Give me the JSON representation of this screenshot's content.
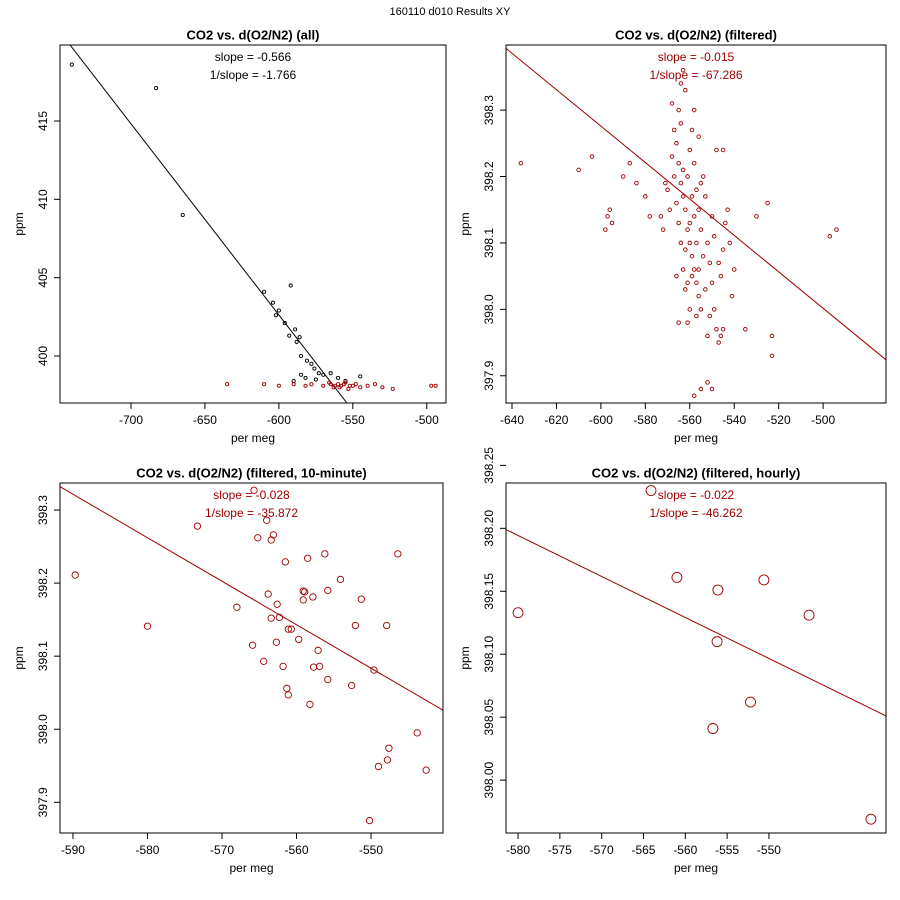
{
  "title": "160110   d010   Results XY",
  "chart_data": [
    {
      "type": "scatter",
      "title": "CO2 vs. d(O2/N2) (all)",
      "x_label": "per meg",
      "y_label": "ppm",
      "annotations": [
        "slope = -0.566",
        "1/slope = -1.766"
      ],
      "annotation_color": "#000000",
      "xlim": [
        -748,
        -487
      ],
      "ylim": [
        397,
        419.85
      ],
      "xticks": [
        -700,
        -650,
        -600,
        -550,
        -500
      ],
      "yticks": [
        400,
        405,
        410,
        415
      ],
      "fit_line": {
        "color": "#000000",
        "x": [
          -741.2,
          -554
        ],
        "y": [
          419.85,
          397
        ]
      },
      "series": [
        {
          "color": "#000000",
          "x": [
            -740,
            -683,
            -665,
            -610,
            -604,
            -602,
            -600,
            -592,
            -596,
            -593,
            -589,
            -588,
            -586,
            -585,
            -581,
            -578,
            -576,
            -573,
            -570,
            -585,
            -582,
            -575,
            -560,
            -555,
            -545,
            -565,
            -590
          ],
          "values": [
            418.6,
            417.1,
            409.0,
            404.1,
            403.4,
            402.6,
            402.9,
            404.5,
            402.1,
            401.3,
            401.7,
            400.9,
            401.2,
            400.0,
            399.7,
            399.5,
            399.2,
            398.9,
            398.8,
            398.8,
            398.6,
            398.5,
            398.6,
            398.4,
            398.7,
            398.9,
            398.4
          ]
        },
        {
          "color": "#a00000",
          "x": [
            -635,
            -610,
            -600,
            -590,
            -582,
            -578,
            -570,
            -566,
            -563,
            -560,
            -558,
            -556,
            -553,
            -550,
            -548,
            -545,
            -540,
            -535,
            -530,
            -523,
            -497,
            -494,
            -565,
            -562,
            -559,
            -555,
            -552
          ],
          "values": [
            398.2,
            398.2,
            398.1,
            398.2,
            398.1,
            398.2,
            398.1,
            398.3,
            398.0,
            398.2,
            398.1,
            398.2,
            397.9,
            398.1,
            398.2,
            398.0,
            398.1,
            398.2,
            398.0,
            397.9,
            398.1,
            398.1,
            398.2,
            398.1,
            398.0,
            398.3,
            398.1
          ]
        }
      ]
    },
    {
      "type": "scatter",
      "title": "CO2 vs. d(O2/N2) (filtered)",
      "x_label": "per meg",
      "y_label": "ppm",
      "annotations": [
        "slope = -0.015",
        "1/slope = -67.286"
      ],
      "annotation_color": "#a00000",
      "xlim": [
        -642.7,
        -471.7
      ],
      "ylim": [
        397.859,
        398.398
      ],
      "xticks": [
        -640,
        -620,
        -600,
        -580,
        -560,
        -540,
        -520,
        -500
      ],
      "yticks": [
        397.9,
        {
          "value": 398,
          "label": "398.0"
        },
        398.1,
        398.2,
        398.3
      ],
      "fit_line": {
        "color": "#a00000",
        "x": [
          -642.7,
          -471.7
        ],
        "y": [
          398.393,
          397.924
        ]
      },
      "series": [
        {
          "color": "#a00000",
          "x": [
            -636,
            -610,
            -604,
            -597,
            -596,
            -595,
            -598,
            -590,
            -587,
            -584,
            -580,
            -578,
            -525,
            -530,
            -523,
            -523,
            -497,
            -494,
            -535,
            -545,
            -555,
            -552,
            -550,
            -558,
            -568,
            -567,
            -566,
            -565,
            -564,
            -563,
            -562,
            -561,
            -560,
            -559,
            -558,
            -557,
            -556,
            -555,
            -566,
            -565,
            -564,
            -563,
            -562,
            -561,
            -560,
            -559,
            -558,
            -557,
            -556,
            -555,
            -554,
            -553,
            -552,
            -551,
            -550,
            -549,
            -548,
            -547,
            -546,
            -545,
            -544,
            -543,
            -542,
            -541,
            -540,
            -567,
            -568,
            -569,
            -570,
            -571,
            -572,
            -573,
            -566,
            -565,
            -564,
            -563,
            -562,
            -561,
            -560,
            -559,
            -558,
            -557,
            -556,
            -555,
            -554,
            -553,
            -552,
            -551,
            -550,
            -549,
            -548,
            -547,
            -546,
            -545,
            -561,
            -562,
            -563,
            -564,
            -565,
            -558,
            -557,
            -556,
            -559,
            -560
          ],
          "values": [
            398.22,
            398.21,
            398.23,
            398.14,
            398.15,
            398.13,
            398.12,
            398.2,
            398.22,
            398.19,
            398.17,
            398.14,
            398.16,
            398.14,
            397.96,
            397.93,
            398.11,
            398.12,
            397.97,
            398.24,
            397.88,
            397.89,
            397.88,
            397.87,
            398.31,
            398.27,
            398.25,
            398.22,
            398.19,
            398.17,
            398.15,
            398.12,
            398.1,
            398.08,
            398.06,
            398.04,
            398.02,
            398,
            398.16,
            398.13,
            398.1,
            398.06,
            398.03,
            398.2,
            398.24,
            398.27,
            398.3,
            398.18,
            398.15,
            398.12,
            398.2,
            398.17,
            398.1,
            398.07,
            398.04,
            398,
            397.97,
            397.95,
            398.05,
            398.09,
            398.13,
            398.15,
            398.1,
            398.02,
            398.06,
            398.2,
            398.23,
            398.15,
            398.18,
            398.19,
            398.12,
            398.14,
            398.05,
            397.98,
            398.34,
            398.36,
            398.33,
            397.98,
            398.0,
            398.05,
            398.22,
            398.1,
            398.26,
            398.19,
            398.08,
            398.03,
            397.96,
            397.99,
            398.14,
            398.11,
            398.24,
            398.07,
            397.96,
            397.97,
            398.04,
            398.09,
            398.21,
            398.28,
            398.3,
            398.14,
            397.99,
            398.06,
            398.17,
            398.13
          ]
        }
      ]
    },
    {
      "type": "scatter",
      "title": "CO2 vs. d(O2/N2) (filtered, 10-minute)",
      "x_label": "per meg",
      "y_label": "ppm",
      "annotations": [
        "slope = -0.028",
        "1/slope = -35.872"
      ],
      "annotation_color": "#a00000",
      "xlim": [
        -591.74,
        -540.34
      ],
      "ylim": [
        397.858,
        398.337
      ],
      "xticks": [
        -590,
        -580,
        -570,
        -560,
        -550
      ],
      "yticks": [
        397.9,
        {
          "value": 398,
          "label": "398.0"
        },
        398.1,
        398.2,
        398.3
      ],
      "fit_line": {
        "color": "#a00000",
        "x": [
          -591.74,
          -540.34
        ],
        "y": [
          398.332,
          398.026
        ]
      },
      "series": [
        {
          "color": "#a00000",
          "x": [
            -589.7,
            -580,
            -573.3,
            -568,
            -565.7,
            -565.9,
            -565.2,
            -564.4,
            -564,
            -563.8,
            -563.4,
            -563.4,
            -563.1,
            -562.7,
            -562.6,
            -562.3,
            -561.8,
            -561.5,
            -561.3,
            -561.1,
            -561.1,
            -560.7,
            -559.7,
            -559.1,
            -559.1,
            -558.9,
            -558.5,
            -558.2,
            -557.8,
            -557.7,
            -557.1,
            -556.9,
            -556.2,
            -555.8,
            -555.8,
            -554.1,
            -552.6,
            -552.1,
            -551.3,
            -550.2,
            -549.6,
            -549,
            -547.9,
            -547.8,
            -547.6,
            -546.4,
            -543.8,
            -542.6
          ],
          "values": [
            398.211,
            398.141,
            398.278,
            398.167,
            398.327,
            398.115,
            398.262,
            398.093,
            398.286,
            398.185,
            398.152,
            398.259,
            398.266,
            398.119,
            398.171,
            398.153,
            398.086,
            398.229,
            398.056,
            398.047,
            398.137,
            398.137,
            398.123,
            398.177,
            398.189,
            398.188,
            398.234,
            398.034,
            398.181,
            398.085,
            398.108,
            398.086,
            398.24,
            398.19,
            398.068,
            398.205,
            398.06,
            398.142,
            398.178,
            397.875,
            398.081,
            397.949,
            398.142,
            397.958,
            397.974,
            398.24,
            397.995,
            397.944
          ]
        }
      ]
    },
    {
      "type": "scatter",
      "title": "CO2 vs. d(O2/N2) (filtered, hourly)",
      "x_label": "per meg",
      "y_label": "ppm",
      "annotations": [
        "slope = -0.022",
        "1/slope = -46.262"
      ],
      "annotation_color": "#a00000",
      "xlim": [
        -581.44,
        -536
      ],
      "ylim": [
        397.958,
        398.236
      ],
      "xticks": [
        -580,
        -575,
        -570,
        -565,
        -560,
        -555,
        -550
      ],
      "yticks": [
        {
          "value": 398,
          "label": "398.00"
        },
        398.05,
        {
          "value": 398.1,
          "label": "398.10"
        },
        398.15,
        {
          "value": 398.2,
          "label": "398.20"
        },
        398.25
      ],
      "fit_line": {
        "color": "#a00000",
        "x": [
          -581.44,
          -536
        ],
        "y": [
          398.199,
          398.051
        ]
      },
      "series": [
        {
          "color": "#a00000",
          "x": [
            -580,
            -561,
            -556.1,
            -556.2,
            -550.6,
            -545.2,
            -552.2,
            -556.7,
            -564.1,
            -537.8
          ],
          "values": [
            398.133,
            398.161,
            398.151,
            398.11,
            398.159,
            398.131,
            398.062,
            398.041,
            398.23,
            397.969
          ]
        }
      ]
    }
  ]
}
